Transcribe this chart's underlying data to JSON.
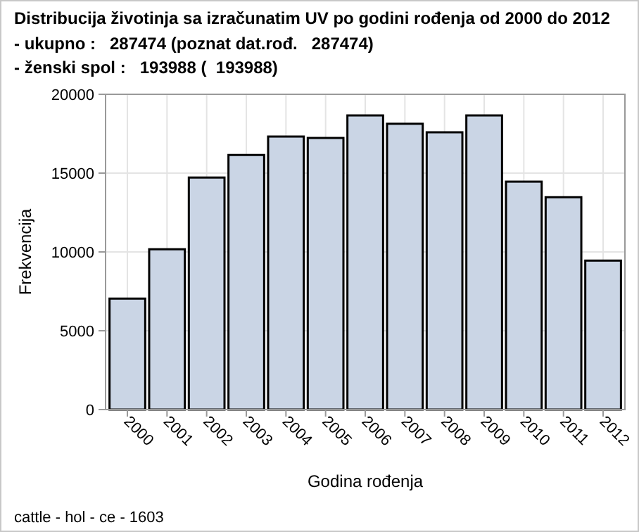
{
  "chart_data": {
    "type": "bar",
    "title": "Distribucija životinja sa izračunatim UV po godini rođenja od 2000 do 2012",
    "subtitle": "- ukupno :   287474 (poznat dat.rođ.   287474)\n- ženski spol :   193988 (  193988)",
    "xlabel": "Godina rođenja",
    "ylabel": "Frekvencija",
    "annotations": [
      "cattle - hol - ce - 1603"
    ],
    "categories": [
      "2000",
      "2001",
      "2002",
      "2003",
      "2004",
      "2005",
      "2006",
      "2007",
      "2008",
      "2009",
      "2010",
      "2011",
      "2012"
    ],
    "values": [
      7040,
      10170,
      14720,
      16150,
      17320,
      17230,
      18660,
      18130,
      17590,
      18660,
      14460,
      13470,
      9450
    ],
    "color": "#cad5e5",
    "ylim": [
      0,
      20000
    ],
    "yticks": [
      0,
      5000,
      10000,
      15000,
      20000
    ],
    "grid": true
  }
}
